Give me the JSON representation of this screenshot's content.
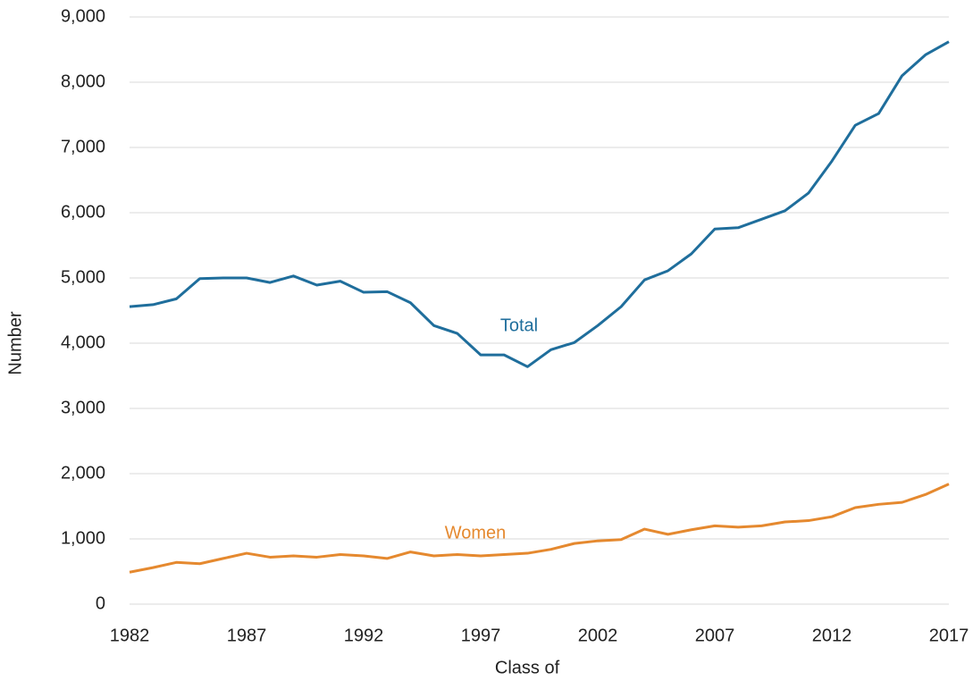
{
  "chart_data": {
    "type": "line",
    "x_label": "Class of",
    "y_label": "Number",
    "x": [
      1982,
      1983,
      1984,
      1985,
      1986,
      1987,
      1988,
      1989,
      1990,
      1991,
      1992,
      1993,
      1994,
      1995,
      1996,
      1997,
      1998,
      1999,
      2000,
      2001,
      2002,
      2003,
      2004,
      2005,
      2006,
      2007,
      2008,
      2009,
      2010,
      2011,
      2012,
      2013,
      2014,
      2015,
      2016,
      2017
    ],
    "series": [
      {
        "name": "Total",
        "color": "#1f6e9c",
        "values": [
          4560,
          4590,
          4680,
          4990,
          5000,
          5000,
          4930,
          5030,
          4890,
          4950,
          4780,
          4790,
          4620,
          4270,
          4150,
          3820,
          3820,
          3640,
          3900,
          4010,
          4270,
          4560,
          4970,
          5110,
          5370,
          5750,
          5770,
          5900,
          6030,
          6300,
          6790,
          7340,
          7520,
          8100,
          8420,
          8620
        ]
      },
      {
        "name": "Women",
        "color": "#e5892f",
        "values": [
          490,
          560,
          640,
          620,
          700,
          780,
          720,
          740,
          720,
          760,
          740,
          700,
          800,
          740,
          760,
          740,
          760,
          780,
          840,
          930,
          970,
          990,
          1150,
          1070,
          1140,
          1200,
          1180,
          1200,
          1260,
          1280,
          1340,
          1480,
          1530,
          1560,
          1680,
          1840
        ]
      }
    ],
    "xlim": [
      1982,
      2017
    ],
    "xticks": [
      1982,
      1987,
      1992,
      1997,
      2002,
      2007,
      2012,
      2017
    ],
    "ylim": [
      0,
      9000
    ],
    "yticks": [
      0,
      {
        "value": 1000,
        "label": "1,000"
      },
      {
        "value": 2000,
        "label": "2,000"
      },
      {
        "value": 3000,
        "label": "3,000"
      },
      {
        "value": 4000,
        "label": "4,000"
      },
      {
        "value": 5000,
        "label": "5,000"
      },
      {
        "value": 6000,
        "label": "6,000"
      },
      {
        "value": 7000,
        "label": "7,000"
      },
      {
        "value": 8000,
        "label": "8,000"
      },
      {
        "value": 9000,
        "label": "9,000"
      }
    ],
    "grid": true
  }
}
